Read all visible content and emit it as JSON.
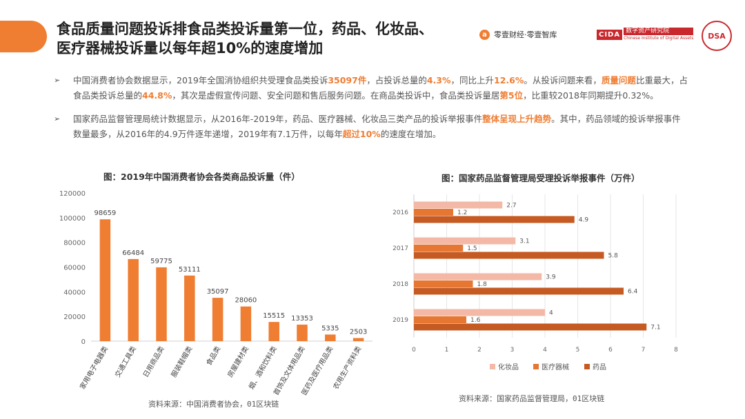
{
  "header": {
    "title_line1": "食品质量问题投诉排食品类投诉量第一位，药品、化妆品、",
    "title_line2": "医疗器械投诉量以每年超10%的速度增加",
    "logo1_mark": "a",
    "logo1_text": "零壹财经·零壹智库",
    "logo2_abbr": "CIDA",
    "logo2_cn": "数字资产研究院",
    "logo2_en": "Chinese Institute of Digital Assets",
    "logo3_text": "DSA"
  },
  "bullets": [
    {
      "arrow": "➢",
      "segments": [
        {
          "t": "中国消费者协会数据显示，2019年全国消协组织共受理食品类投诉"
        },
        {
          "t": "35097件",
          "hl": true
        },
        {
          "t": "，占投诉总量的"
        },
        {
          "t": "4.3%",
          "hl": true
        },
        {
          "t": "，同比上升"
        },
        {
          "t": "12.6%",
          "hl": true
        },
        {
          "t": "。从投诉问题来看，"
        },
        {
          "t": "质量问题",
          "hl": true
        },
        {
          "t": "比重最大，占食品类投诉总量的"
        },
        {
          "t": "44.8%",
          "hl": true
        },
        {
          "t": "，其次是虚假宣传问题、安全问题和售后服务问题。在商品类投诉中，食品类投诉量居"
        },
        {
          "t": "第5位",
          "hl": true
        },
        {
          "t": "，比重较2018年同期提升0.32%。"
        }
      ]
    },
    {
      "arrow": "➢",
      "segments": [
        {
          "t": "国家药品监督管理局统计数据显示，从2016年-2019年，药品、医疗器械、化妆品三类产品的投诉举报事件"
        },
        {
          "t": "整体呈现上升趋势",
          "hl": true
        },
        {
          "t": "。其中，药品领域的投诉举报事件数量最多，从2016年的4.9万件逐年递增，2019年有7.1万件，以每年"
        },
        {
          "t": "超过10%",
          "hl": true
        },
        {
          "t": "的速度在增加。"
        }
      ]
    }
  ],
  "charts_text": {
    "bar_title": "图：2019年中国消费者协会各类商品投诉量（件）",
    "bar_source": "资料来源：中国消费者协会，01区块链",
    "hbar_title": "图：国家药品监督管理局受理投诉举报事件（万件）",
    "hbar_source": "资料来源：国家药品监督管理局，01区块链"
  },
  "colors": {
    "accent": "#ef7d32",
    "bar": "#ef7d32",
    "cosmetics": "#f4b8a6",
    "medical_device": "#e57733",
    "drug": "#c55a22"
  },
  "chart_data": [
    {
      "type": "bar",
      "title": "图：2019年中国消费者协会各类商品投诉量（件）",
      "categories": [
        "家用电子电器类",
        "交通工具类",
        "日用商品类",
        "服装鞋帽类",
        "食品类",
        "房屋建材类",
        "烟、酒和饮料类",
        "首饰及文体用品类",
        "医药及医疗用品类",
        "农用生产资料类"
      ],
      "values": [
        98659,
        66484,
        59775,
        53111,
        35097,
        28060,
        15515,
        13353,
        5335,
        2503
      ],
      "yticks": [
        0,
        20000,
        40000,
        60000,
        80000,
        100000,
        120000
      ],
      "ylim": [
        0,
        120000
      ],
      "xlabel": "",
      "ylabel": "",
      "grid": false
    },
    {
      "type": "bar",
      "orientation": "horizontal",
      "title": "图：国家药品监督管理局受理投诉举报事件（万件）",
      "categories": [
        "2016",
        "2017",
        "2018",
        "2019"
      ],
      "series": [
        {
          "name": "化妆品",
          "values": [
            2.7,
            3.1,
            3.9,
            4
          ]
        },
        {
          "name": "医疗器械",
          "values": [
            1.2,
            1.5,
            1.8,
            1.6
          ]
        },
        {
          "name": "药品",
          "values": [
            4.9,
            5.8,
            6.4,
            7.1
          ]
        }
      ],
      "xticks": [
        0,
        1,
        2,
        3,
        4,
        5,
        6,
        7,
        8
      ],
      "xlim": [
        0,
        8
      ],
      "legend": "bottom",
      "grid": true
    }
  ]
}
